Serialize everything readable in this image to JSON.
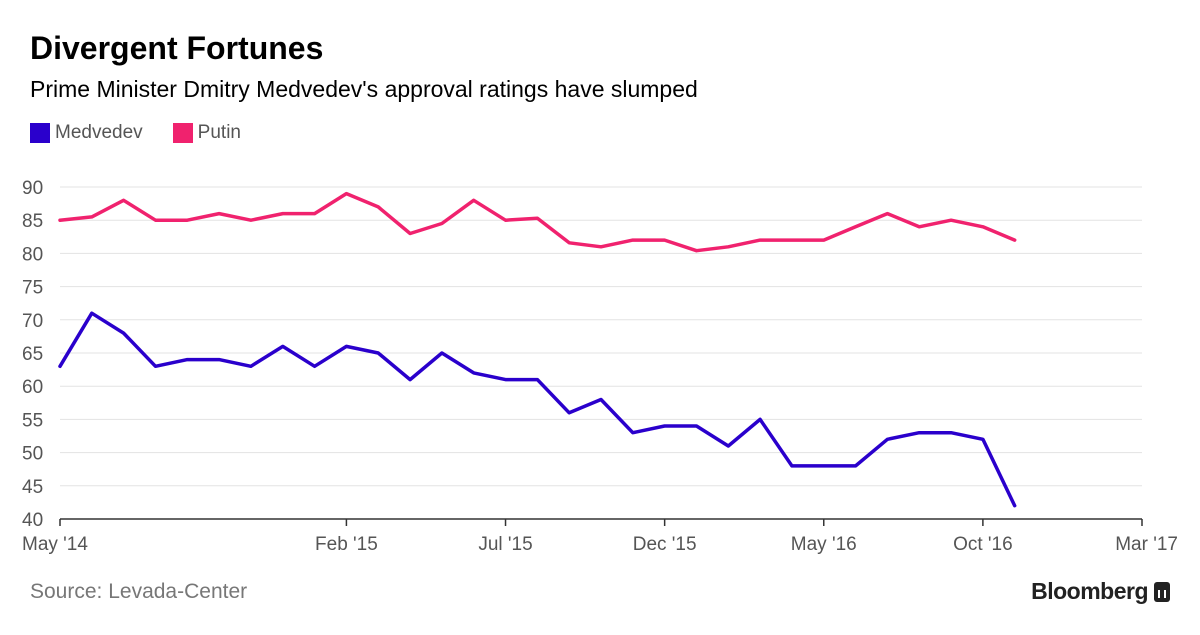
{
  "header": {
    "title": "Divergent Fortunes",
    "subtitle": "Prime Minister Dmitry Medvedev's approval ratings have slumped"
  },
  "legend": [
    {
      "label": "Medvedev",
      "color": "#2a00cc"
    },
    {
      "label": "Putin",
      "color": "#f0226e"
    }
  ],
  "footer": {
    "source": "Source: Levada-Center",
    "brand": "Bloomberg"
  },
  "chart_data": {
    "type": "line",
    "title": "Divergent Fortunes",
    "subtitle": "Prime Minister Dmitry Medvedev's approval ratings have slumped",
    "ylim": [
      40,
      90
    ],
    "yticks": [
      40,
      45,
      50,
      55,
      60,
      65,
      70,
      75,
      80,
      85,
      90
    ],
    "xlim": [
      "2014-05",
      "2017-03"
    ],
    "xticks": [
      {
        "date": "2014-05",
        "label": "May '14"
      },
      {
        "date": "2015-02",
        "label": "Feb '15"
      },
      {
        "date": "2015-07",
        "label": "Jul '15"
      },
      {
        "date": "2015-12",
        "label": "Dec '15"
      },
      {
        "date": "2016-05",
        "label": "May '16"
      },
      {
        "date": "2016-10",
        "label": "Oct '16"
      },
      {
        "date": "2017-03",
        "label": "Mar '17"
      }
    ],
    "grid": true,
    "legend_position": "top-left",
    "series": [
      {
        "name": "Medvedev",
        "color": "#2a00cc",
        "points": [
          [
            "2014-05",
            63
          ],
          [
            "2014-06",
            71
          ],
          [
            "2014-07",
            68
          ],
          [
            "2014-08",
            63
          ],
          [
            "2014-09",
            64
          ],
          [
            "2014-10",
            64
          ],
          [
            "2014-11",
            63
          ],
          [
            "2014-12",
            66
          ],
          [
            "2015-01",
            63
          ],
          [
            "2015-02",
            66
          ],
          [
            "2015-03",
            65
          ],
          [
            "2015-04",
            61
          ],
          [
            "2015-05",
            65
          ],
          [
            "2015-06",
            62
          ],
          [
            "2015-07",
            61
          ],
          [
            "2015-08",
            61
          ],
          [
            "2015-09",
            56
          ],
          [
            "2015-10",
            58
          ],
          [
            "2015-11",
            53
          ],
          [
            "2015-12",
            54
          ],
          [
            "2016-01",
            54
          ],
          [
            "2016-02",
            51
          ],
          [
            "2016-03",
            55
          ],
          [
            "2016-04",
            48
          ],
          [
            "2016-05",
            48
          ],
          [
            "2016-06",
            48
          ],
          [
            "2016-07",
            52
          ],
          [
            "2016-08",
            53
          ],
          [
            "2016-09",
            53
          ],
          [
            "2016-10",
            52
          ],
          [
            "2016-11",
            42
          ]
        ]
      },
      {
        "name": "Putin",
        "color": "#f0226e",
        "points": [
          [
            "2014-05",
            85
          ],
          [
            "2014-06",
            85.5
          ],
          [
            "2014-07",
            88
          ],
          [
            "2014-08",
            85
          ],
          [
            "2014-09",
            85
          ],
          [
            "2014-10",
            86
          ],
          [
            "2014-11",
            85
          ],
          [
            "2014-12",
            86
          ],
          [
            "2015-01",
            86
          ],
          [
            "2015-02",
            89
          ],
          [
            "2015-03",
            87
          ],
          [
            "2015-04",
            83
          ],
          [
            "2015-05",
            84.5
          ],
          [
            "2015-06",
            88
          ],
          [
            "2015-07",
            85
          ],
          [
            "2015-08",
            85.3
          ],
          [
            "2015-09",
            81.6
          ],
          [
            "2015-10",
            81
          ],
          [
            "2015-11",
            82
          ],
          [
            "2015-12",
            82
          ],
          [
            "2016-01",
            80.4
          ],
          [
            "2016-02",
            81
          ],
          [
            "2016-03",
            82
          ],
          [
            "2016-04",
            82
          ],
          [
            "2016-05",
            82
          ],
          [
            "2016-06",
            84
          ],
          [
            "2016-07",
            86
          ],
          [
            "2016-08",
            84
          ],
          [
            "2016-09",
            85
          ],
          [
            "2016-10",
            84
          ],
          [
            "2016-11",
            82
          ]
        ]
      }
    ]
  }
}
